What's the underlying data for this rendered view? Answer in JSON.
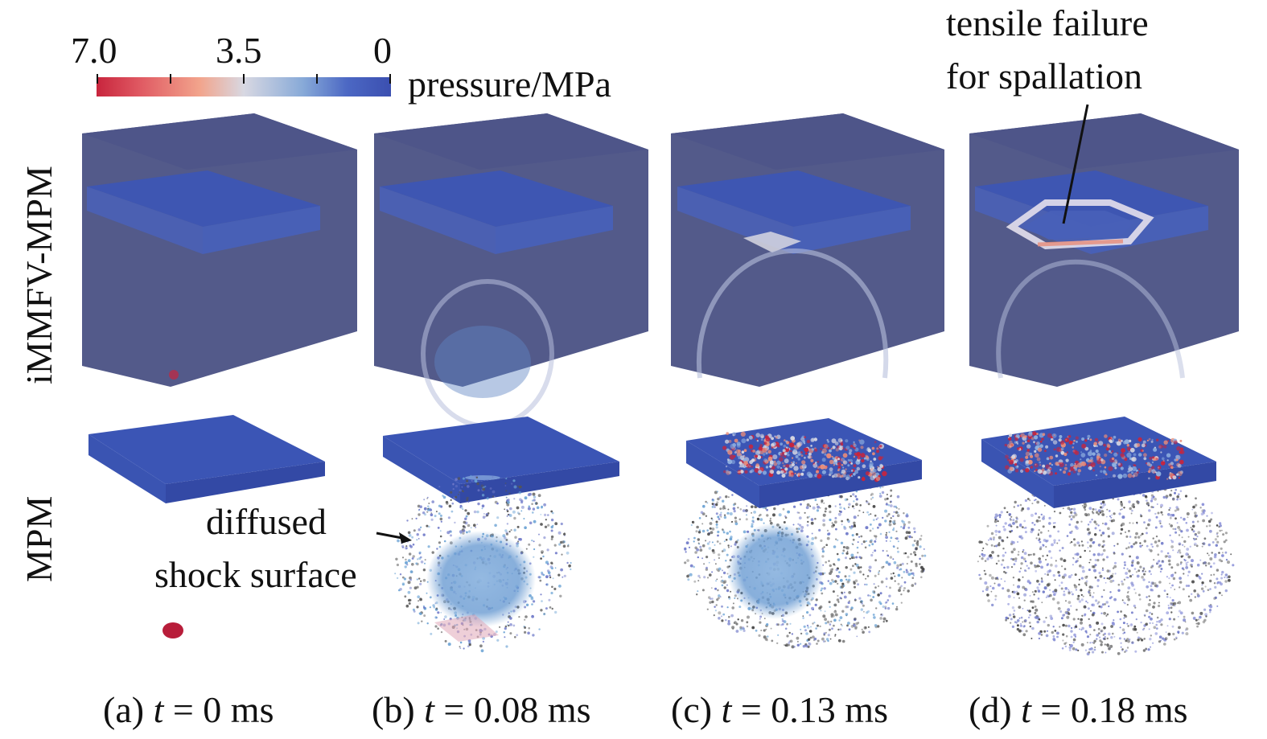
{
  "colorbar": {
    "ticks": [
      "7.0",
      "3.5",
      "0"
    ],
    "label": "pressure/MPa",
    "colors": {
      "high": "#c8253d",
      "mid_high": "#f2a48c",
      "mid": "#d8d8e2",
      "mid_low": "#88aad8",
      "low": "#3b4fb0"
    }
  },
  "row_labels": {
    "top": "iMMFV-MPM",
    "bottom": "MPM"
  },
  "annotations": {
    "tensile_line1": "tensile failure",
    "tensile_line2": "for spallation",
    "diffused_line1": "diffused",
    "diffused_line2": "shock surface"
  },
  "panels": [
    {
      "prefix": "(a) ",
      "var": "t",
      "rest": " = 0 ms"
    },
    {
      "prefix": "(b) ",
      "var": "t",
      "rest": " = 0.08 ms"
    },
    {
      "prefix": "(c) ",
      "var": "t",
      "rest": " = 0.13 ms"
    },
    {
      "prefix": "(d) ",
      "var": "t",
      "rest": " = 0.18 ms"
    }
  ],
  "render_colors": {
    "cube": "#535a8a",
    "cube_top": "#4b5388",
    "plate": "#3b55b5",
    "plate_side": "#3349a5",
    "wave": "#b8c0dc",
    "particle": "#6e78c8",
    "particle_core": "#6aa2d4",
    "stress": "#c8253d"
  }
}
